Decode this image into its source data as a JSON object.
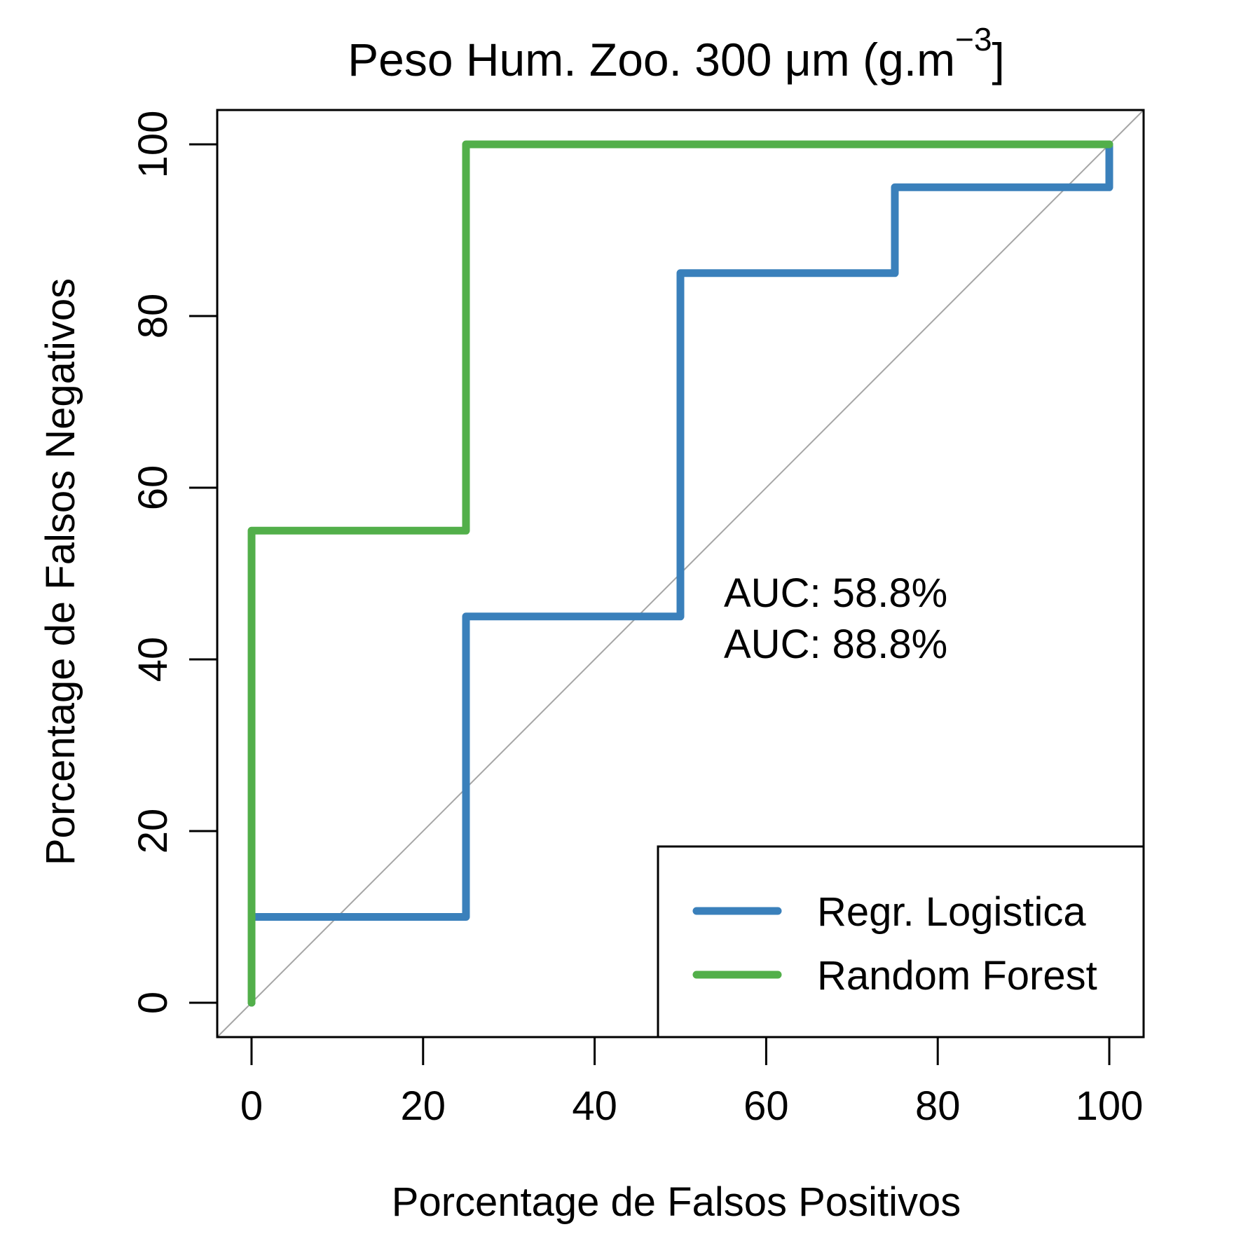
{
  "chart_data": {
    "type": "line",
    "title": "Peso Hum. Zoo. 300 μm (g.m",
    "title_superscript": "−3",
    "title_suffix": "]",
    "xlabel": "Porcentage de Falsos Positivos",
    "ylabel": "Porcentage de Falsos Negativos",
    "xlim": [
      -4,
      104
    ],
    "ylim": [
      -4,
      104
    ],
    "xticks": [
      0,
      20,
      40,
      60,
      80,
      100
    ],
    "yticks": [
      0,
      20,
      40,
      60,
      80,
      100
    ],
    "grid": false,
    "diagonal": {
      "from": [
        -4,
        -4
      ],
      "to": [
        104,
        104
      ],
      "color": "#a6a6a6"
    },
    "series": [
      {
        "name": "Regr. Logistica",
        "color": "#3a80bb",
        "x": [
          0,
          0,
          25,
          25,
          50,
          50,
          75,
          75,
          100,
          100
        ],
        "y": [
          0,
          10,
          10,
          45,
          45,
          85,
          85,
          95,
          95,
          100
        ]
      },
      {
        "name": "Random Forest",
        "color": "#52af4a",
        "x": [
          0,
          0,
          25,
          25,
          100
        ],
        "y": [
          0,
          55,
          55,
          100,
          100
        ]
      }
    ],
    "annotations": [
      {
        "text": "AUC: 58.8%",
        "color": "#3a80bb"
      },
      {
        "text": "AUC: 88.8%",
        "color": "#52af4a"
      }
    ],
    "legend": {
      "position": "bottom-right"
    }
  }
}
